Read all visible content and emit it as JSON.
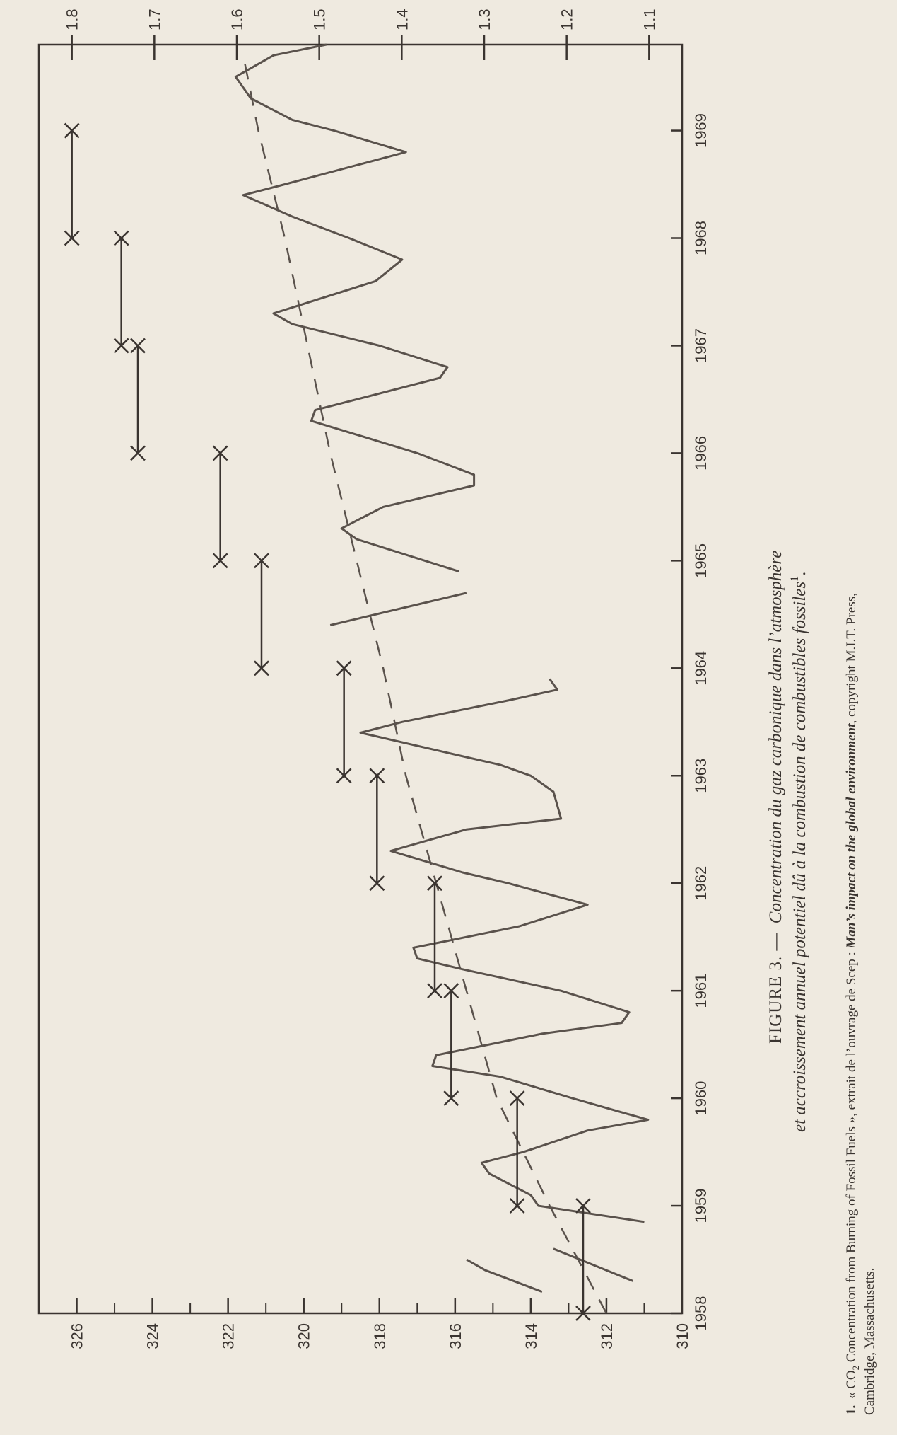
{
  "chart_data": {
    "type": "line",
    "orientation": "rotated 90 degrees counter-clockwise (x axis runs bottom to top)",
    "x_axis": {
      "label": "",
      "range": [
        1958,
        1969.8
      ],
      "tick_labels": [
        "1958",
        "1959",
        "1960",
        "1961",
        "1962",
        "1963",
        "1964",
        "1965",
        "1966",
        "1967",
        "1968",
        "1969"
      ]
    },
    "y_axis_left": {
      "label": "",
      "range": [
        310,
        327
      ],
      "tick_labels": [
        "310",
        "312",
        "314",
        "316",
        "318",
        "320",
        "322",
        "324",
        "326"
      ]
    },
    "y_axis_right": {
      "label": "",
      "range": [
        1.06,
        1.84
      ],
      "tick_labels": [
        "1.1",
        "1.2",
        "1.3",
        "1.4",
        "1.5",
        "1.6",
        "1.7",
        "1.8"
      ]
    },
    "grid": false,
    "series": [
      {
        "kind": "solid",
        "segments": [
          [
            [
              1958.2,
              313.7
            ],
            [
              1958.4,
              315.2
            ],
            [
              1958.5,
              315.7
            ]
          ],
          [
            [
              1958.3,
              311.3
            ],
            [
              1958.6,
              313.4
            ]
          ],
          [
            [
              1958.85,
              311.0
            ],
            [
              1959.0,
              313.8
            ],
            [
              1959.1,
              314.0
            ],
            [
              1959.3,
              315.1
            ],
            [
              1959.4,
              315.3
            ],
            [
              1959.5,
              314.2
            ],
            [
              1959.7,
              312.5
            ],
            [
              1959.8,
              310.9
            ],
            [
              1960.0,
              312.9
            ],
            [
              1960.2,
              314.8
            ],
            [
              1960.3,
              316.6
            ],
            [
              1960.4,
              316.5
            ],
            [
              1960.6,
              313.7
            ],
            [
              1960.7,
              311.6
            ],
            [
              1960.8,
              311.4
            ],
            [
              1961.0,
              313.2
            ],
            [
              1961.2,
              315.8
            ],
            [
              1961.3,
              317.0
            ],
            [
              1961.4,
              317.1
            ],
            [
              1961.6,
              314.3
            ],
            [
              1961.8,
              312.5
            ],
            [
              1962.0,
              314.6
            ],
            [
              1962.1,
              315.8
            ],
            [
              1962.3,
              317.7
            ],
            [
              1962.5,
              315.7
            ],
            [
              1962.6,
              313.2
            ],
            [
              1962.85,
              313.4
            ],
            [
              1963.0,
              314.0
            ],
            [
              1963.1,
              314.8
            ],
            [
              1963.4,
              318.5
            ],
            [
              1963.5,
              317.4
            ],
            [
              1963.7,
              314.6
            ],
            [
              1963.8,
              313.3
            ],
            [
              1963.9,
              313.5
            ]
          ],
          [
            [
              1964.4,
              319.3
            ],
            [
              1964.7,
              315.7
            ]
          ],
          [
            [
              1964.9,
              315.9
            ],
            [
              1965.2,
              318.6
            ],
            [
              1965.3,
              319.0
            ],
            [
              1965.5,
              317.9
            ],
            [
              1965.7,
              315.5
            ],
            [
              1965.8,
              315.5
            ],
            [
              1966.0,
              317.0
            ],
            [
              1966.3,
              319.8
            ],
            [
              1966.4,
              319.7
            ],
            [
              1966.7,
              316.4
            ],
            [
              1966.8,
              316.2
            ],
            [
              1967.0,
              318.0
            ],
            [
              1967.2,
              320.3
            ],
            [
              1967.3,
              320.8
            ],
            [
              1967.6,
              318.1
            ],
            [
              1967.8,
              317.4
            ],
            [
              1968.0,
              318.8
            ],
            [
              1968.2,
              320.3
            ],
            [
              1968.4,
              321.6
            ],
            [
              1968.5,
              320.5
            ],
            [
              1968.8,
              317.3
            ],
            [
              1969.0,
              319.2
            ],
            [
              1969.1,
              320.3
            ],
            [
              1969.3,
              321.4
            ],
            [
              1969.5,
              321.8
            ],
            [
              1969.7,
              320.8
            ],
            [
              1969.8,
              319.4
            ]
          ]
        ]
      },
      {
        "kind": "dashed trend",
        "points": [
          [
            1958.0,
            312.0
          ],
          [
            1959.0,
            313.5
          ],
          [
            1960.0,
            314.9
          ],
          [
            1961.0,
            315.7
          ],
          [
            1962.0,
            316.5
          ],
          [
            1963.0,
            317.3
          ],
          [
            1964.0,
            317.9
          ],
          [
            1965.0,
            318.6
          ],
          [
            1966.0,
            319.3
          ],
          [
            1967.0,
            319.9
          ],
          [
            1968.0,
            320.5
          ],
          [
            1969.0,
            321.2
          ],
          [
            1969.7,
            321.6
          ]
        ]
      },
      {
        "kind": "annual increment bars (right axis)",
        "bars": [
          {
            "x0": 1958.0,
            "x1": 1959.0,
            "y": 1.18
          },
          {
            "x0": 1959.0,
            "x1": 1960.0,
            "y": 1.26
          },
          {
            "x0": 1960.0,
            "x1": 1961.0,
            "y": 1.34
          },
          {
            "x0": 1961.0,
            "x1": 1962.0,
            "y": 1.36
          },
          {
            "x0": 1962.0,
            "x1": 1963.0,
            "y": 1.43
          },
          {
            "x0": 1963.0,
            "x1": 1964.0,
            "y": 1.47
          },
          {
            "x0": 1964.0,
            "x1": 1965.0,
            "y": 1.57
          },
          {
            "x0": 1965.0,
            "x1": 1966.0,
            "y": 1.62
          },
          {
            "x0": 1966.0,
            "x1": 1967.0,
            "y": 1.72
          },
          {
            "x0": 1967.0,
            "x1": 1968.0,
            "y": 1.74
          },
          {
            "x0": 1968.0,
            "x1": 1969.0,
            "y": 1.8
          }
        ]
      }
    ]
  },
  "caption": {
    "figure_label": "FIGURE 3. —",
    "line1": "Concentration du gaz carbonique dans l’atmosphère",
    "line2": "et accroissement annuel potentiel dû à la combustion de combustibles fossiles",
    "line2_superscript": "1",
    "line2_end": "."
  },
  "footnote": {
    "marker": "1.",
    "line1_a": "« CO",
    "line1_sub": "2",
    "line1_b": " Concentration from Burning of Fossil Fuels », extrait de l’ouvrage de Scep : ",
    "line1_italic": "Man’s impact on the global environment",
    "line1_c": ", copyright M.I.T. Press,",
    "line2": "Cambridge, Massachusetts."
  }
}
